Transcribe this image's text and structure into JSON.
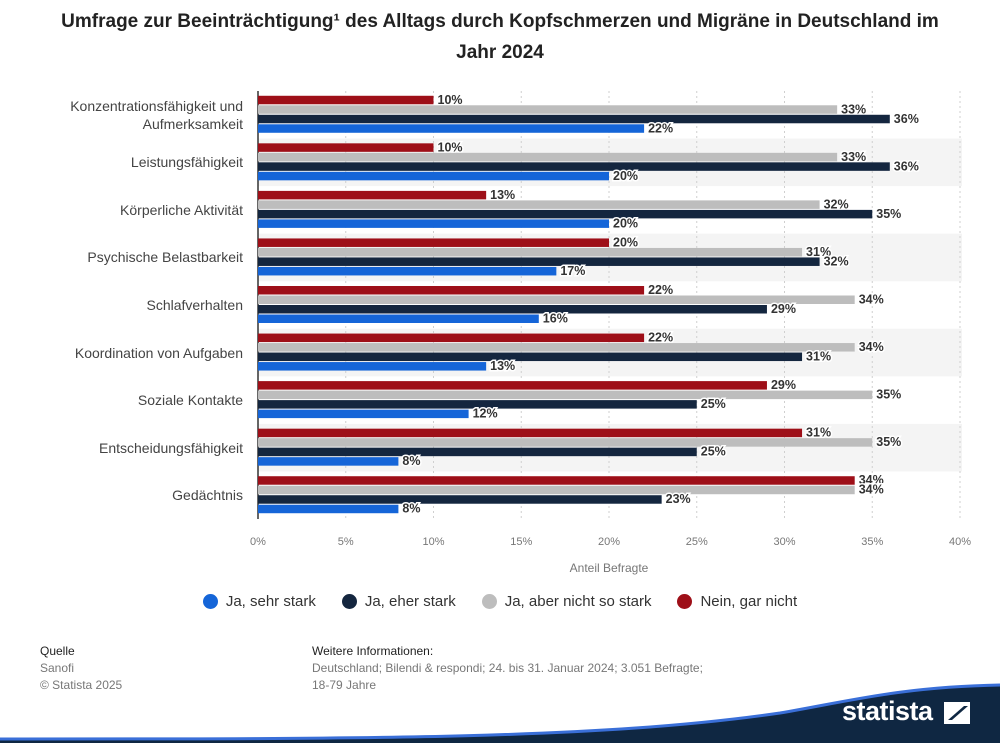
{
  "title": "Umfrage zur Beeinträchtigung¹ des Alltags durch Kopfschmerzen und Migräne in Deutschland im Jahr 2024",
  "chart_data": {
    "type": "bar",
    "orientation": "horizontal",
    "title": "Umfrage zur Beeinträchtigung¹ des Alltags durch Kopfschmerzen und Migräne in Deutschland im Jahr 2024",
    "xlabel": "Anteil Befragte",
    "ylabel": "",
    "xlim": [
      0,
      40
    ],
    "ticks": [
      "0%",
      "5%",
      "10%",
      "15%",
      "20%",
      "25%",
      "30%",
      "35%",
      "40%"
    ],
    "tick_values": [
      0,
      5,
      10,
      15,
      20,
      25,
      30,
      35,
      40
    ],
    "grid": true,
    "legend_position": "bottom",
    "categories": [
      "Konzentrationsfähigkeit und Aufmerksamkeit",
      "Leistungsfähigkeit",
      "Körperliche Aktivität",
      "Psychische Belastbarkeit",
      "Schlafverhalten",
      "Koordination von Aufgaben",
      "Soziale Kontakte",
      "Entscheidungsfähigkeit",
      "Gedächtnis"
    ],
    "series": [
      {
        "name": "Nein, gar nicht",
        "color": "#9e0f18",
        "values": [
          10,
          10,
          13,
          20,
          22,
          22,
          29,
          31,
          34
        ]
      },
      {
        "name": "Ja, aber nicht so stark",
        "color": "#bdbdbd",
        "values": [
          33,
          33,
          32,
          31,
          34,
          34,
          35,
          35,
          34
        ]
      },
      {
        "name": "Ja, eher stark",
        "color": "#14263f",
        "values": [
          36,
          36,
          35,
          32,
          29,
          31,
          25,
          25,
          23
        ]
      },
      {
        "name": "Ja, sehr stark",
        "color": "#1565d8",
        "values": [
          22,
          20,
          20,
          17,
          16,
          13,
          12,
          8,
          8
        ]
      }
    ],
    "legend_order": [
      "Ja, sehr stark",
      "Ja, eher stark",
      "Ja, aber nicht so stark",
      "Nein, gar nicht"
    ]
  },
  "footer": {
    "source_label": "Quelle",
    "source": "Sanofi",
    "copyright": "© Statista 2025",
    "info_label": "Weitere Informationen:",
    "info_line1": "Deutschland; Bilendi & respondi; 24. bis 31. Januar 2024; 3.051 Befragte;",
    "info_line2": "18-79 Jahre"
  },
  "brand": {
    "name": "statista",
    "color": "#0f2742",
    "accent": "#3a6fd8"
  }
}
